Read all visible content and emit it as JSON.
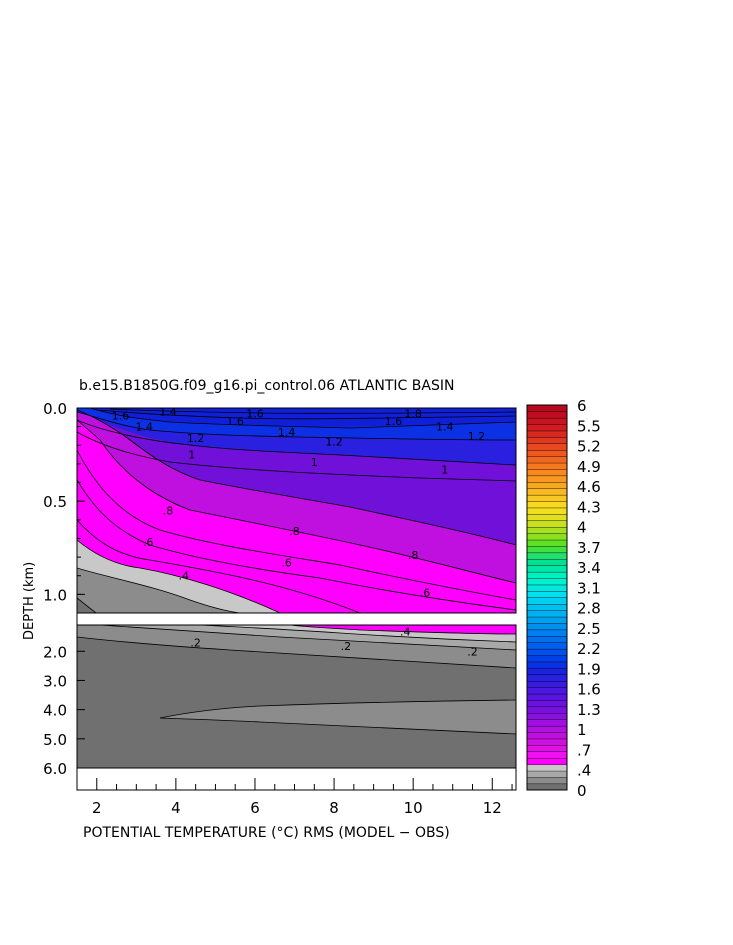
{
  "chart_data": {
    "type": "heatmap",
    "title": "b.e15.B1850G.f09_g16.pi_control.06 ATLANTIC BASIN",
    "xlabel": "POTENTIAL TEMPERATURE (°C) RMS (MODEL − OBS)",
    "ylabel": "DEPTH (km)",
    "xlim": [
      1.5,
      12.6
    ],
    "x_ticks": [
      "2",
      "4",
      "6",
      "8",
      "10",
      "12"
    ],
    "upper_panel": {
      "ylim": [
        0.0,
        1.1
      ],
      "y_ticks": [
        "0.0",
        "0.5",
        "1.0"
      ]
    },
    "lower_panel": {
      "ylim": [
        1.1,
        6.0
      ],
      "y_ticks": [
        "2.0",
        "3.0",
        "4.0",
        "5.0",
        "6.0"
      ]
    },
    "contour_labels": [
      {
        "text": "1.6",
        "x": 2.6,
        "y": 0.04
      },
      {
        "text": "1.4",
        "x": 3.8,
        "y": 0.02
      },
      {
        "text": "1.6",
        "x": 5.5,
        "y": 0.07
      },
      {
        "text": "1.6",
        "x": 6.0,
        "y": 0.03
      },
      {
        "text": "1.6",
        "x": 9.5,
        "y": 0.07
      },
      {
        "text": "1.8",
        "x": 10.0,
        "y": 0.03
      },
      {
        "text": "1.4",
        "x": 3.2,
        "y": 0.1
      },
      {
        "text": "1.4",
        "x": 6.8,
        "y": 0.13
      },
      {
        "text": "1.4",
        "x": 10.8,
        "y": 0.1
      },
      {
        "text": "1.2",
        "x": 4.5,
        "y": 0.16
      },
      {
        "text": "1.2",
        "x": 8.0,
        "y": 0.18
      },
      {
        "text": "1.2",
        "x": 11.6,
        "y": 0.15
      },
      {
        "text": "1",
        "x": 4.4,
        "y": 0.25
      },
      {
        "text": "1",
        "x": 7.5,
        "y": 0.29
      },
      {
        "text": "1",
        "x": 10.8,
        "y": 0.33
      },
      {
        "text": ".8",
        "x": 3.8,
        "y": 0.55
      },
      {
        "text": ".8",
        "x": 7.0,
        "y": 0.66
      },
      {
        "text": ".8",
        "x": 10.0,
        "y": 0.79
      },
      {
        "text": ".6",
        "x": 3.3,
        "y": 0.72
      },
      {
        "text": ".6",
        "x": 6.8,
        "y": 0.83
      },
      {
        "text": ".6",
        "x": 10.3,
        "y": 0.99
      },
      {
        "text": ".4",
        "x": 4.2,
        "y": 0.9
      },
      {
        "text": ".4",
        "x": 9.8,
        "y": 1.32
      },
      {
        "text": ".2",
        "x": 4.5,
        "y": 1.7
      },
      {
        "text": ".2",
        "x": 8.3,
        "y": 1.82
      },
      {
        "text": ".2",
        "x": 11.5,
        "y": 2.0
      }
    ],
    "colorbar": {
      "vmin": 0,
      "vmax": 6,
      "tick_labels": [
        "6",
        "5.5",
        "5.2",
        "4.9",
        "4.6",
        "4.3",
        "4",
        "3.7",
        "3.4",
        "3.1",
        "2.8",
        "2.5",
        "2.2",
        "1.9",
        "1.6",
        "1.3",
        "1",
        ".7",
        ".4",
        "0"
      ],
      "colors": [
        "#707070",
        "#8c8c8c",
        "#a8a8a8",
        "#c8c8c8",
        "#ff00ff",
        "#f010f0",
        "#e010e8",
        "#d010e0",
        "#c010e0",
        "#b010e0",
        "#a010e0",
        "#8a10e0",
        "#7a10e0",
        "#6a10e0",
        "#5a14e0",
        "#4a18e0",
        "#3a1ce0",
        "#2a20e0",
        "#1a24e0",
        "#0c30e4",
        "#0040e8",
        "#0050ec",
        "#0060f0",
        "#0070f0",
        "#0080f0",
        "#0090f0",
        "#00a0f0",
        "#00b0f0",
        "#00c0f0",
        "#00d0f0",
        "#00e0f0",
        "#00e8e0",
        "#00f0d0",
        "#00f0c0",
        "#00e8a8",
        "#00e090",
        "#20e070",
        "#40e040",
        "#60e020",
        "#88e020",
        "#a8e020",
        "#c8e020",
        "#e0e020",
        "#f0e020",
        "#f8d820",
        "#f8c820",
        "#f8b820",
        "#f8a820",
        "#f89820",
        "#f88820",
        "#f87820",
        "#f06820",
        "#f05820",
        "#e84820",
        "#e03820",
        "#d82820",
        "#d01c20",
        "#c81420",
        "#c00c20",
        "#b80820"
      ]
    },
    "colors": {
      "blue_surface": "#1020d8",
      "upper_interior": "#7010d8",
      "magenta_low": "#ff00ff",
      "magenta_mid": "#c010e0",
      "gray_light": "#c8c8c8",
      "gray_mid": "#8c8c8c",
      "gray_dark": "#707070",
      "gray_lighter": "#a8a8a8"
    }
  }
}
